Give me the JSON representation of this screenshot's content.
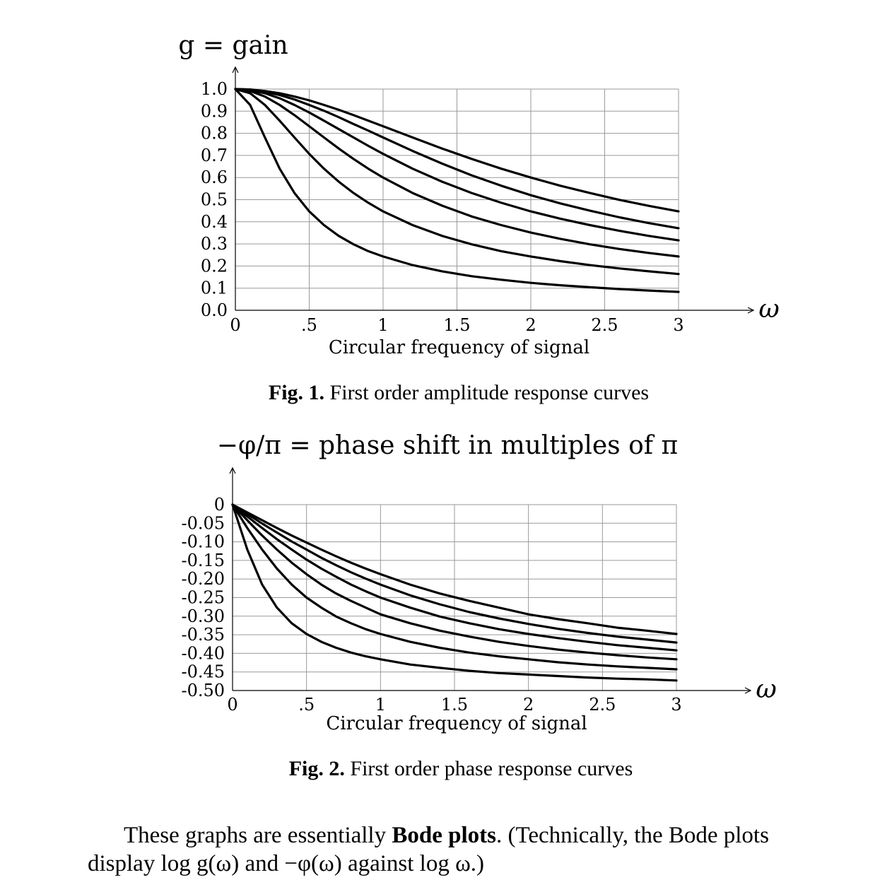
{
  "chart_data": [
    {
      "type": "line",
      "ylabel": "g = gain",
      "xlabel": "Circular frequency of signal",
      "xaxis_symbol": "ω",
      "xlim": [
        0,
        3
      ],
      "ylim": [
        0,
        1
      ],
      "xticks": [
        "0",
        ".5",
        "1",
        "1.5",
        "2",
        "2.5",
        "3"
      ],
      "yticks": [
        "1.0",
        "0.9",
        "0.8",
        "0.7",
        "0.6",
        "0.5",
        "0.4",
        "0.3",
        "0.2",
        "0.1",
        "0.0"
      ],
      "grid": true,
      "color": "#000000",
      "x": [
        0,
        0.1,
        0.2,
        0.3,
        0.4,
        0.5,
        0.6,
        0.7,
        0.8,
        0.9,
        1.0,
        1.2,
        1.4,
        1.6,
        1.8,
        2.0,
        2.2,
        2.4,
        2.6,
        2.8,
        3.0
      ],
      "series": [
        {
          "values": [
            1.0,
            0.928,
            0.781,
            0.64,
            0.53,
            0.447,
            0.385,
            0.336,
            0.298,
            0.267,
            0.243,
            0.204,
            0.176,
            0.154,
            0.138,
            0.124,
            0.113,
            0.104,
            0.096,
            0.089,
            0.083
          ]
        },
        {
          "values": [
            1.0,
            0.981,
            0.928,
            0.857,
            0.781,
            0.707,
            0.64,
            0.581,
            0.53,
            0.486,
            0.447,
            0.385,
            0.336,
            0.298,
            0.267,
            0.243,
            0.222,
            0.204,
            0.189,
            0.176,
            0.164
          ]
        },
        {
          "values": [
            1.0,
            0.991,
            0.966,
            0.928,
            0.882,
            0.832,
            0.781,
            0.731,
            0.684,
            0.64,
            0.6,
            0.53,
            0.473,
            0.424,
            0.385,
            0.351,
            0.323,
            0.298,
            0.277,
            0.259,
            0.243
          ]
        },
        {
          "values": [
            1.0,
            0.995,
            0.981,
            0.958,
            0.928,
            0.894,
            0.857,
            0.819,
            0.781,
            0.743,
            0.707,
            0.64,
            0.581,
            0.53,
            0.486,
            0.447,
            0.414,
            0.385,
            0.359,
            0.336,
            0.316
          ]
        },
        {
          "values": [
            1.0,
            0.997,
            0.988,
            0.973,
            0.953,
            0.928,
            0.902,
            0.873,
            0.842,
            0.812,
            0.781,
            0.72,
            0.663,
            0.61,
            0.563,
            0.52,
            0.483,
            0.45,
            0.42,
            0.394,
            0.371
          ]
        },
        {
          "values": [
            1.0,
            0.998,
            0.991,
            0.981,
            0.966,
            0.949,
            0.928,
            0.906,
            0.882,
            0.857,
            0.832,
            0.781,
            0.731,
            0.684,
            0.64,
            0.6,
            0.563,
            0.53,
            0.499,
            0.472,
            0.447
          ]
        }
      ]
    },
    {
      "type": "line",
      "ylabel": "−φ/π = phase shift in multiples of π",
      "xlabel": "Circular frequency of signal",
      "xaxis_symbol": "ω",
      "xlim": [
        0,
        3
      ],
      "ylim": [
        -0.5,
        0
      ],
      "xticks": [
        "0",
        ".5",
        "1",
        "1.5",
        "2",
        "2.5",
        "3"
      ],
      "yticks": [
        "0",
        "-0.05",
        "-0.10",
        "-0.15",
        "-0.20",
        "-0.25",
        "-0.30",
        "-0.35",
        "-0.40",
        "-0.45",
        "-0.50"
      ],
      "grid": true,
      "color": "#000000",
      "x": [
        0,
        0.1,
        0.2,
        0.3,
        0.4,
        0.5,
        0.6,
        0.7,
        0.8,
        0.9,
        1.0,
        1.2,
        1.4,
        1.6,
        1.8,
        2.0,
        2.2,
        2.4,
        2.6,
        2.8,
        3.0
      ],
      "series": [
        {
          "values": [
            0,
            -0.121,
            -0.215,
            -0.277,
            -0.319,
            -0.348,
            -0.369,
            -0.385,
            -0.398,
            -0.408,
            -0.416,
            -0.43,
            -0.439,
            -0.447,
            -0.453,
            -0.457,
            -0.461,
            -0.465,
            -0.468,
            -0.47,
            -0.473
          ]
        },
        {
          "values": [
            0,
            -0.063,
            -0.121,
            -0.172,
            -0.215,
            -0.25,
            -0.277,
            -0.301,
            -0.319,
            -0.335,
            -0.348,
            -0.369,
            -0.385,
            -0.398,
            -0.408,
            -0.416,
            -0.424,
            -0.43,
            -0.435,
            -0.439,
            -0.443
          ]
        },
        {
          "values": [
            0,
            -0.042,
            -0.083,
            -0.121,
            -0.156,
            -0.187,
            -0.215,
            -0.239,
            -0.259,
            -0.277,
            -0.295,
            -0.319,
            -0.339,
            -0.355,
            -0.369,
            -0.38,
            -0.39,
            -0.398,
            -0.405,
            -0.411,
            -0.416
          ]
        },
        {
          "values": [
            0,
            -0.032,
            -0.063,
            -0.093,
            -0.121,
            -0.148,
            -0.172,
            -0.194,
            -0.215,
            -0.233,
            -0.25,
            -0.277,
            -0.301,
            -0.319,
            -0.335,
            -0.348,
            -0.359,
            -0.369,
            -0.378,
            -0.385,
            -0.392
          ]
        },
        {
          "values": [
            0,
            -0.025,
            -0.051,
            -0.075,
            -0.099,
            -0.121,
            -0.143,
            -0.163,
            -0.182,
            -0.199,
            -0.215,
            -0.244,
            -0.268,
            -0.289,
            -0.306,
            -0.321,
            -0.334,
            -0.345,
            -0.355,
            -0.363,
            -0.371
          ]
        },
        {
          "values": [
            0,
            -0.021,
            -0.042,
            -0.063,
            -0.083,
            -0.102,
            -0.121,
            -0.139,
            -0.156,
            -0.172,
            -0.187,
            -0.215,
            -0.239,
            -0.259,
            -0.277,
            -0.295,
            -0.308,
            -0.319,
            -0.331,
            -0.339,
            -0.348
          ]
        }
      ]
    }
  ],
  "fig1_caption": {
    "label": "Fig. 1.",
    "text": " First order amplitude response curves"
  },
  "fig2_caption": {
    "label": "Fig. 2.",
    "text": " First order phase response curves"
  },
  "paragraph": {
    "line1_pre": "These graphs are essentially ",
    "line1_bold": "Bode plots",
    "line1_post": ".  (Technically, the Bode plots",
    "line2": "display log g(ω) and −φ(ω) against log ω.)"
  }
}
